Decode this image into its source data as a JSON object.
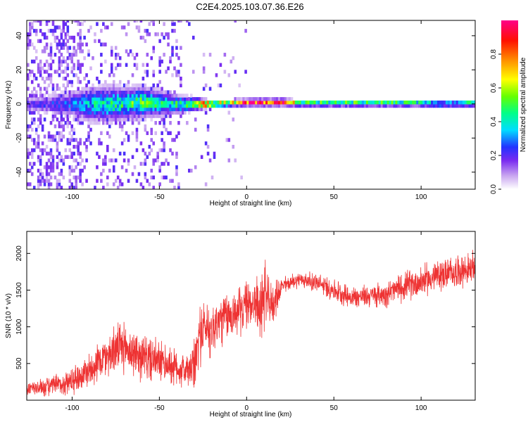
{
  "figure": {
    "title": "C2E4.2025.103.07.36.E26"
  },
  "chart_data": [
    {
      "type": "heatmap",
      "xlabel": "Height of straight line (km)",
      "ylabel": "Frequency (Hz)",
      "xlim": [
        -126,
        131
      ],
      "ylim": [
        -50,
        49
      ],
      "xticks": [
        -100,
        -50,
        0,
        50,
        100
      ],
      "yticks": [
        -40,
        -20,
        0,
        20,
        40
      ],
      "colorbar": {
        "label": "Normalized spectral amplitude",
        "range": [
          0.0,
          1.0
        ],
        "ticks": [
          0.0,
          0.2,
          0.4,
          0.6,
          0.8
        ]
      },
      "band_profile": {
        "x": [
          -126,
          -100,
          -90,
          -80,
          -70,
          -60,
          -50,
          -40,
          -30,
          -25,
          -20,
          -10,
          0,
          10,
          20,
          30,
          50,
          70,
          100,
          110,
          131
        ],
        "center_freq_hz": [
          0,
          0,
          0,
          0,
          0.5,
          1,
          0.5,
          0,
          0,
          0,
          0,
          0.5,
          1,
          1,
          1,
          0.5,
          0.5,
          0.5,
          0.5,
          0,
          0.5
        ],
        "half_width_hz": [
          3,
          6,
          8,
          8,
          7,
          7,
          6,
          4,
          3,
          2,
          1.5,
          1.5,
          1.5,
          1.5,
          1.5,
          1.5,
          1.5,
          1.5,
          1.5,
          1.5,
          1.5
        ],
        "peak_amplitude": [
          0.2,
          0.3,
          0.4,
          0.45,
          0.5,
          0.55,
          0.45,
          0.5,
          0.6,
          0.95,
          0.95,
          0.7,
          0.95,
          0.95,
          0.95,
          0.6,
          0.55,
          0.55,
          0.55,
          0.4,
          0.55
        ]
      }
    },
    {
      "type": "line",
      "xlabel": "Height of straight line (km)",
      "ylabel": "SNR (10 * v/v)",
      "xlim": [
        -126,
        131
      ],
      "ylim": [
        0,
        2300
      ],
      "xticks": [
        -100,
        -50,
        0,
        50,
        100
      ],
      "yticks": [
        500,
        1000,
        1500,
        2000
      ],
      "series": [
        {
          "color": "#ee3333",
          "x": [
            -126,
            -115,
            -105,
            -95,
            -85,
            -75,
            -70,
            -65,
            -55,
            -45,
            -38,
            -33,
            -30,
            -27,
            -24,
            -20,
            -15,
            -10,
            -5,
            0,
            5,
            8,
            10,
            12,
            15,
            18,
            20,
            25,
            30,
            40,
            50,
            60,
            70,
            80,
            90,
            100,
            110,
            120,
            131
          ],
          "y": [
            150,
            180,
            220,
            330,
            520,
            700,
            720,
            640,
            560,
            480,
            420,
            400,
            450,
            900,
            1000,
            950,
            1100,
            1150,
            1200,
            1300,
            1350,
            1200,
            1500,
            1350,
            1300,
            1450,
            1550,
            1600,
            1650,
            1600,
            1500,
            1400,
            1420,
            1450,
            1550,
            1620,
            1700,
            1750,
            1800
          ],
          "noise_amplitude": [
            100,
            120,
            150,
            200,
            250,
            300,
            320,
            300,
            280,
            250,
            230,
            230,
            350,
            400,
            350,
            350,
            350,
            300,
            300,
            300,
            300,
            450,
            500,
            300,
            250,
            200,
            120,
            100,
            100,
            120,
            140,
            140,
            140,
            160,
            180,
            200,
            200,
            200,
            200
          ]
        }
      ]
    }
  ]
}
